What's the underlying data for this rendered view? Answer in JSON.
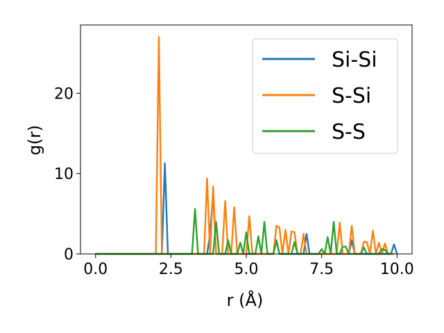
{
  "chart_data": {
    "type": "line",
    "xlabel": "r (Å)",
    "ylabel": "g(r)",
    "xlim": [
      -0.5,
      10.5
    ],
    "ylim": [
      0,
      28.5
    ],
    "xticks": [
      0.0,
      2.5,
      5.0,
      7.5,
      10.0
    ],
    "xtick_labels": [
      "0.0",
      "2.5",
      "5.0",
      "7.5",
      "10.0"
    ],
    "yticks": [
      0,
      10,
      20
    ],
    "ytick_labels": [
      "0",
      "10",
      "20"
    ],
    "grid": false,
    "legend_position": "top-right",
    "series": [
      {
        "name": "Si-Si",
        "color": "#1f77b4",
        "x": [
          0,
          2.2,
          2.3,
          2.4,
          3.7,
          3.8,
          3.9,
          4.0,
          4.1,
          5.9,
          6.0,
          6.1,
          6.9,
          7.0,
          7.1,
          8.4,
          8.5,
          8.6,
          9.8,
          9.9,
          10.0
        ],
        "y": [
          0,
          0,
          11.3,
          0,
          0,
          2.5,
          7.6,
          0,
          0,
          0,
          1.7,
          0,
          0,
          2.5,
          0,
          0,
          1.7,
          0,
          0,
          1.2,
          0
        ]
      },
      {
        "name": "S-Si",
        "color": "#ff7f0e",
        "x": [
          0,
          2.0,
          2.1,
          2.2,
          3.6,
          3.7,
          3.8,
          3.9,
          4.0,
          4.1,
          4.2,
          4.3,
          4.4,
          4.5,
          4.6,
          4.7,
          5.0,
          5.1,
          5.2,
          5.9,
          6.0,
          6.1,
          6.2,
          6.3,
          6.4,
          6.5,
          6.6,
          6.7,
          6.8,
          6.9,
          7.0,
          8.0,
          8.1,
          8.2,
          8.4,
          8.5,
          8.6,
          8.8,
          8.9,
          9.0,
          9.1,
          9.2,
          9.3,
          9.4,
          9.5,
          9.6,
          9.7,
          9.8,
          9.9
        ],
        "y": [
          0,
          0,
          27.0,
          0,
          0,
          9.4,
          0,
          8.4,
          0,
          0,
          0,
          6.6,
          0,
          0,
          5.8,
          0,
          0,
          4.7,
          0,
          0,
          3.5,
          3.3,
          0,
          3.0,
          0,
          2.8,
          2.7,
          0,
          0,
          2.5,
          0,
          0,
          3.9,
          0,
          0,
          3.5,
          0,
          0,
          1.5,
          1.5,
          0,
          2.9,
          0,
          1.4,
          0,
          1.3,
          0,
          0,
          0
        ]
      },
      {
        "name": "S-S",
        "color": "#2ca02c",
        "x": [
          0,
          3.2,
          3.3,
          3.4,
          3.9,
          4.0,
          4.1,
          4.3,
          4.4,
          4.5,
          4.7,
          4.8,
          4.9,
          5.0,
          5.1,
          5.3,
          5.4,
          5.5,
          5.6,
          5.7,
          5.9,
          6.0,
          6.1,
          6.5,
          6.6,
          6.7,
          7.4,
          7.5,
          7.6,
          7.7,
          7.8,
          7.9,
          8.0,
          8.1,
          8.2,
          8.3,
          8.4,
          8.6,
          8.7,
          8.8,
          8.9,
          9.0,
          9.4,
          9.5,
          9.6,
          9.7,
          9.8
        ],
        "y": [
          0,
          0,
          5.6,
          0,
          0,
          4.0,
          0,
          0,
          1.7,
          0,
          0,
          1.4,
          0,
          2.7,
          0,
          0,
          2.2,
          0,
          4.0,
          0,
          0,
          1.6,
          0,
          0,
          1.5,
          0,
          0,
          0.6,
          0,
          2.1,
          0,
          4.0,
          0,
          0,
          0.9,
          0.9,
          0,
          0,
          0,
          0,
          0.8,
          0,
          0,
          0.6,
          0.5,
          0,
          0
        ]
      }
    ]
  }
}
